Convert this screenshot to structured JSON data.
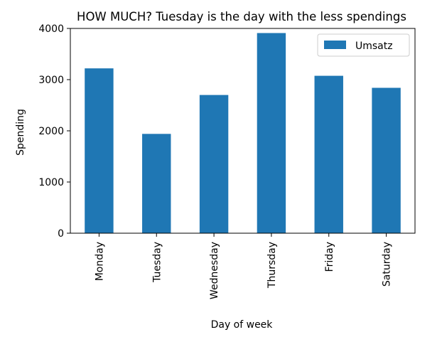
{
  "chart_data": {
    "type": "bar",
    "title": "HOW MUCH? Tuesday is the day with the less spendings",
    "xlabel": "Day of week",
    "ylabel": "Spending",
    "categories": [
      "Monday",
      "Tuesday",
      "Wednesday",
      "Thursday",
      "Friday",
      "Saturday"
    ],
    "series": [
      {
        "name": "Umsatz",
        "values": [
          3220,
          1940,
          2700,
          3910,
          3075,
          2840
        ],
        "color": "#1f77b4"
      }
    ],
    "ylim": [
      0,
      4000
    ],
    "yticks": [
      0,
      1000,
      2000,
      3000,
      4000
    ],
    "grid": false,
    "legend": "top-right"
  }
}
